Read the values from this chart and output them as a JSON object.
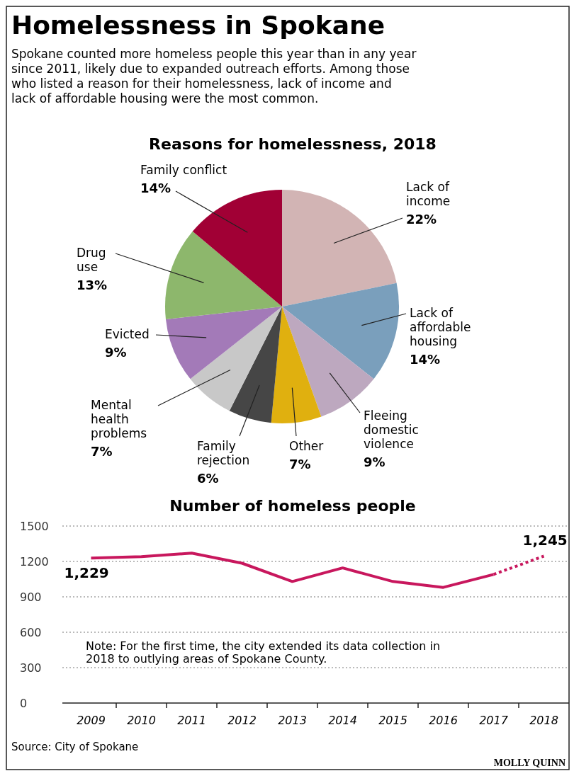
{
  "chart_data": [
    {
      "type": "pie",
      "title": "Reasons for homelessness, 2018",
      "annotations": [
        "Homelessness in Spokane",
        "Spokane counted more homeless people this year than in any year since 2011, likely due to expanded outreach efforts. Among those who listed a reason for their homelessness, lack of income and lack of affordable housing were the most common."
      ],
      "categories": [
        "Lack of income",
        "Lack of affordable housing",
        "Fleeing domestic violence",
        "Other",
        "Family rejection",
        "Mental health problems",
        "Evicted",
        "Drug use",
        "Family conflict"
      ],
      "values": [
        22,
        14,
        9,
        7,
        6,
        7,
        9,
        13,
        14
      ],
      "colors": [
        "#d2b4b4",
        "#7a9fbc",
        "#bda8bf",
        "#e0b00f",
        "#464646",
        "#c8c8c8",
        "#a37ab8",
        "#8db76c",
        "#a10035"
      ],
      "value_labels": [
        "22%",
        "14%",
        "9%",
        "7%",
        "6%",
        "7%",
        "9%",
        "13%",
        "14%"
      ]
    },
    {
      "type": "line",
      "title": "Number of homeless people",
      "categories": [
        "2009",
        "2010",
        "2011",
        "2012",
        "2013",
        "2014",
        "2015",
        "2016",
        "2017",
        "2018"
      ],
      "series": [
        {
          "color": "#c8175d",
          "line_style": "solid",
          "values": [
            1229,
            1240,
            1270,
            1185,
            1030,
            1145,
            1030,
            980,
            1090,
            null
          ],
          "value_labels": [
            "1,229",
            null,
            null,
            null,
            null,
            null,
            null,
            null,
            null,
            null
          ]
        },
        {
          "color": "#c8175d",
          "line_style": "dotted",
          "values": [
            null,
            null,
            null,
            null,
            null,
            null,
            null,
            null,
            1090,
            1245
          ],
          "value_labels": [
            null,
            null,
            null,
            null,
            null,
            null,
            null,
            null,
            null,
            "1,245"
          ]
        }
      ],
      "ylim": [
        0,
        1500
      ],
      "yticks": [
        0,
        300,
        600,
        900,
        1200,
        1500
      ],
      "grid": "y",
      "annotations": [
        "Note: For the first time, the city extended its data collection in 2018 to outlying areas of Spokane County.",
        "Source: City of Spokane",
        "MOLLY QUINN"
      ]
    }
  ]
}
